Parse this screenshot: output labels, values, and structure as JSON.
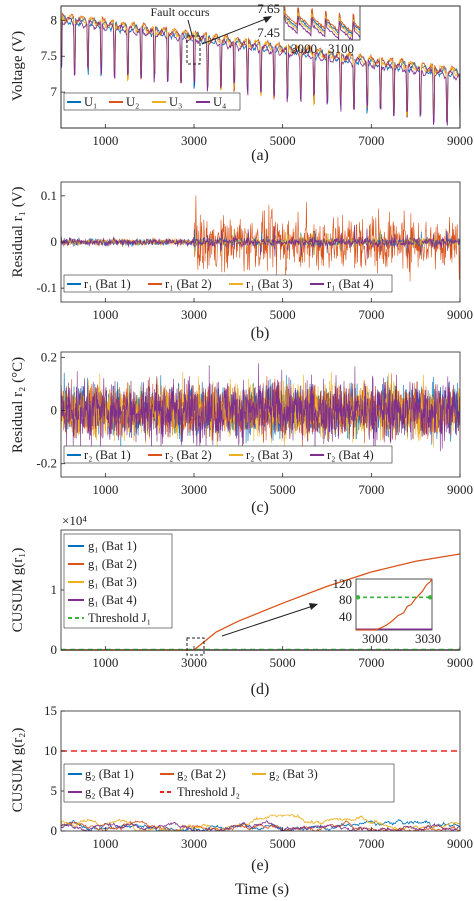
{
  "colors": {
    "bat1": "#0072BD",
    "bat2": "#D95319",
    "bat3": "#EDB120",
    "bat4": "#7E2F8E",
    "threshold_j1": "#3BB33B",
    "threshold_j2": "#E8231E",
    "zoom_box": "#222222"
  },
  "xlabel": "Time (s)",
  "chart_data": [
    {
      "id": "a",
      "type": "line",
      "caption": "(a)",
      "ylabel": "Voltage (V)",
      "xlim": [
        0,
        9000
      ],
      "ylim": [
        6.5,
        8.2
      ],
      "x_ticks": [
        1000,
        3000,
        5000,
        7000,
        9000
      ],
      "x_tick_labels": [
        "1000",
        "3000",
        "5000",
        "7000",
        "9000"
      ],
      "y_ticks": [
        7,
        7.5,
        8
      ],
      "y_tick_labels": [
        "7",
        "7.5",
        "8"
      ],
      "series": [
        {
          "name": "U₁",
          "start": 8.02,
          "end": 7.25
        },
        {
          "name": "U₂",
          "start": 8.05,
          "end": 7.28
        },
        {
          "name": "U₃",
          "start": 8.04,
          "end": 7.27
        },
        {
          "name": "U₄",
          "start": 8.0,
          "end": 7.22
        }
      ],
      "annotation": "Fault occurs",
      "fault_time": 3000,
      "inset": {
        "xlim": [
          2920,
          3140
        ],
        "ylim": [
          7.4,
          7.7
        ],
        "x_tick_labels": [
          "3000",
          "3100"
        ],
        "y_tick_labels": [
          "7.65",
          "7.45"
        ]
      }
    },
    {
      "id": "b",
      "type": "line",
      "caption": "(b)",
      "ylabel": "Residual r₁ (V)",
      "xlim": [
        0,
        9000
      ],
      "ylim": [
        -0.13,
        0.13
      ],
      "x_ticks": [
        1000,
        3000,
        5000,
        7000,
        9000
      ],
      "x_tick_labels": [
        "1000",
        "3000",
        "5000",
        "7000",
        "9000"
      ],
      "y_ticks": [
        -0.1,
        0,
        0.1
      ],
      "y_tick_labels": [
        "-0.1",
        "0",
        "0.1"
      ],
      "series": [
        {
          "name": "r₁ (Bat 1)",
          "amplitude": 0.008
        },
        {
          "name": "r₁ (Bat 2)",
          "amplitude_before_fault": 0.008,
          "amplitude_after_fault": 0.07
        },
        {
          "name": "r₁ (Bat 3)",
          "amplitude": 0.008
        },
        {
          "name": "r₁ (Bat 4)",
          "amplitude": 0.01
        }
      ],
      "fault_time": 3000
    },
    {
      "id": "c",
      "type": "line",
      "caption": "(c)",
      "ylabel": "Residual r₂ (°C)",
      "xlim": [
        0,
        9000
      ],
      "ylim": [
        -0.25,
        0.22
      ],
      "x_ticks": [
        1000,
        3000,
        5000,
        7000,
        9000
      ],
      "x_tick_labels": [
        "1000",
        "3000",
        "5000",
        "7000",
        "9000"
      ],
      "y_ticks": [
        -0.2,
        0,
        0.2
      ],
      "y_tick_labels": [
        "-0.2",
        "0",
        "0.2"
      ],
      "series": [
        {
          "name": "r₂ (Bat 1)",
          "amplitude": 0.12
        },
        {
          "name": "r₂ (Bat 2)",
          "amplitude": 0.12
        },
        {
          "name": "r₂ (Bat 3)",
          "amplitude": 0.13
        },
        {
          "name": "r₂ (Bat 4)",
          "amplitude": 0.15
        }
      ]
    },
    {
      "id": "d",
      "type": "line",
      "caption": "(d)",
      "ylabel": "CUSUM g(r₁)",
      "exponent_label": "×10⁴",
      "xlim": [
        0,
        9000
      ],
      "ylim": [
        0,
        2
      ],
      "x_ticks": [
        1000,
        3000,
        5000,
        7000,
        9000
      ],
      "x_tick_labels": [
        "1000",
        "3000",
        "5000",
        "7000",
        "9000"
      ],
      "y_ticks": [
        0,
        1
      ],
      "y_tick_labels": [
        "0",
        "1"
      ],
      "series": [
        {
          "name": "g₁ (Bat 1)",
          "x": [
            0,
            9000
          ],
          "y": [
            0,
            0
          ]
        },
        {
          "name": "g₁ (Bat 2)",
          "x": [
            0,
            3000,
            3500,
            4000,
            5000,
            6000,
            7000,
            8000,
            9000
          ],
          "y": [
            0,
            0,
            0.3,
            0.48,
            0.78,
            1.06,
            1.3,
            1.48,
            1.6
          ]
        },
        {
          "name": "g₁ (Bat 3)",
          "x": [
            0,
            9000
          ],
          "y": [
            0,
            0
          ]
        },
        {
          "name": "g₁ (Bat 4)",
          "x": [
            0,
            9000
          ],
          "y": [
            0,
            0
          ]
        },
        {
          "name": "Threshold J₁",
          "x": [
            0,
            9000
          ],
          "y": [
            0.008,
            0.008
          ]
        }
      ],
      "inset": {
        "xlim": [
          2990,
          3030
        ],
        "ylim": [
          0,
          125
        ],
        "x_tick_labels": [
          "3000",
          "3030"
        ],
        "y_tick_labels": [
          "40",
          "80",
          "120"
        ],
        "threshold": 80
      }
    },
    {
      "id": "e",
      "type": "line",
      "caption": "(e)",
      "ylabel": "CUSUM g(r₂)",
      "xlim": [
        0,
        9000
      ],
      "ylim": [
        0,
        15
      ],
      "x_ticks": [
        1000,
        3000,
        5000,
        7000,
        9000
      ],
      "x_tick_labels": [
        "1000",
        "3000",
        "5000",
        "7000",
        "9000"
      ],
      "y_ticks": [
        0,
        5,
        10,
        15
      ],
      "y_tick_labels": [
        "0",
        "5",
        "10",
        "15"
      ],
      "series": [
        {
          "name": "g₂ (Bat 1)",
          "level": 0.6
        },
        {
          "name": "g₂ (Bat 2)",
          "level": 0.5
        },
        {
          "name": "g₂ (Bat 3)",
          "level": 0.9
        },
        {
          "name": "g₂ (Bat 4)",
          "level": 0.5
        },
        {
          "name": "Threshold J₂",
          "value": 10
        }
      ]
    }
  ]
}
